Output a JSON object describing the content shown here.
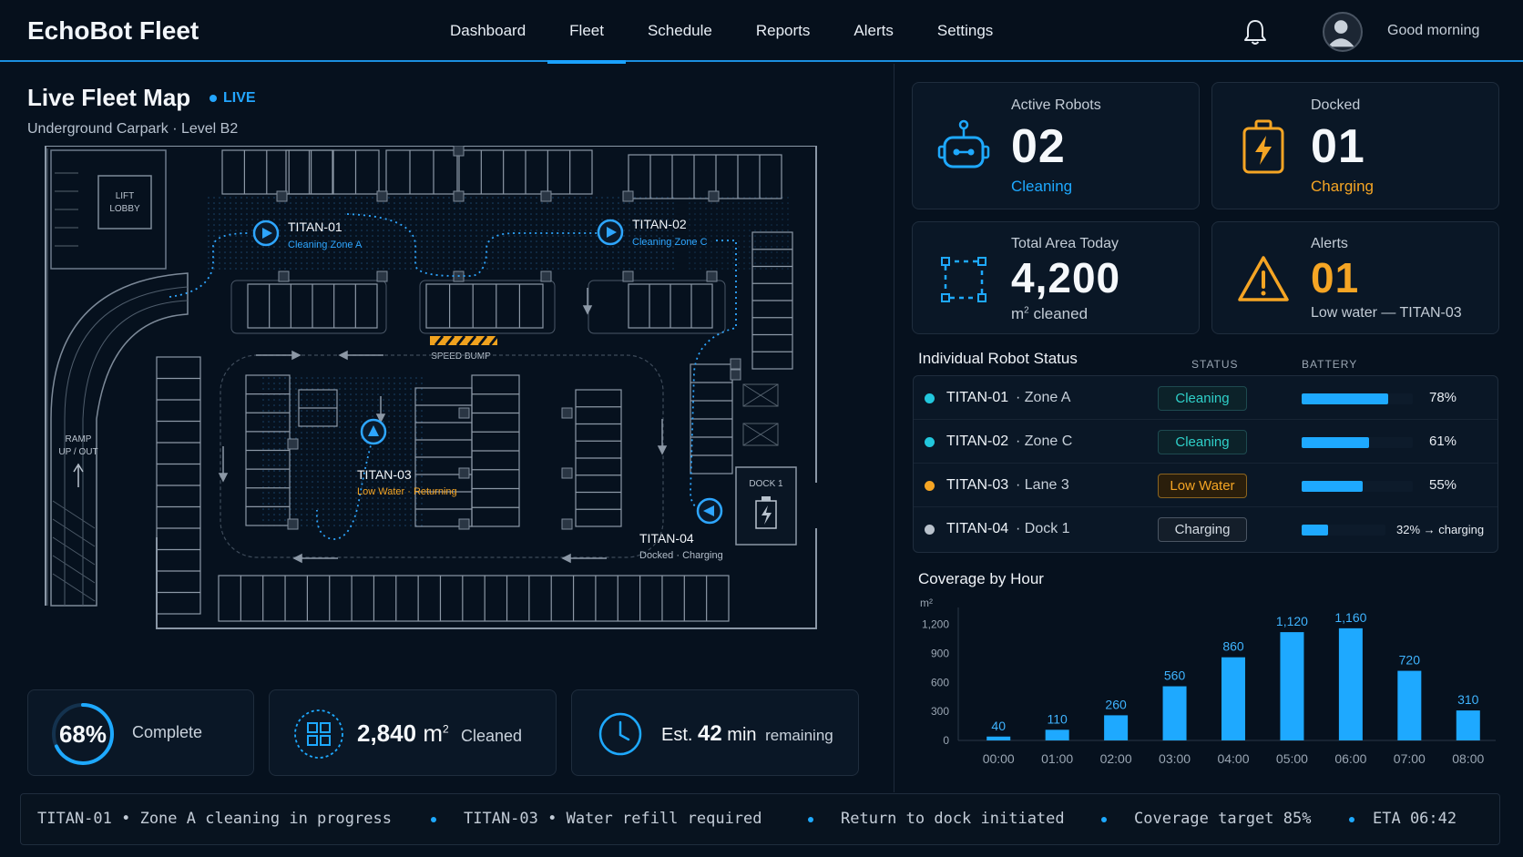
{
  "header": {
    "brand": "EchoBot Fleet",
    "nav": [
      "Dashboard",
      "Fleet",
      "Schedule",
      "Reports",
      "Alerts",
      "Settings"
    ],
    "active_nav": "Fleet",
    "greeting": "Good morning"
  },
  "map": {
    "title": "Live Fleet Map",
    "live_label": "LIVE",
    "location": "Underground Carpark",
    "level": "Level B2",
    "labels": {
      "lift_lobby": [
        "LIFT",
        "LOBBY"
      ],
      "ramp": [
        "RAMP",
        "UP / OUT"
      ],
      "speed_bump": "SPEED BUMP",
      "dock": "DOCK 1"
    },
    "robots": [
      {
        "name": "TITAN-01",
        "status": "Cleaning Zone A",
        "color": "#2ea6ff"
      },
      {
        "name": "TITAN-02",
        "status": "Cleaning Zone C",
        "color": "#2ea6ff"
      },
      {
        "name": "TITAN-03",
        "status": "Low Water · Returning",
        "color": "#f5a524"
      },
      {
        "name": "TITAN-04",
        "status": "Docked · Charging",
        "color": "#b4bfcb"
      }
    ]
  },
  "progress": {
    "percent_text": "68%",
    "percent_value": 0.68,
    "complete_label": "Complete",
    "area_value": "2,840",
    "area_unit": "m",
    "area_sup": "2",
    "area_label": "Cleaned",
    "eta_prefix": "Est.",
    "eta_value": "42",
    "eta_unit": "min",
    "eta_label": "remaining"
  },
  "kpis": {
    "active": {
      "label": "Active Robots",
      "value": "02",
      "sub": "Cleaning",
      "icon": "robot-icon"
    },
    "docked": {
      "label": "Docked",
      "value": "01",
      "sub": "Charging",
      "icon": "battery-charging-icon"
    },
    "area": {
      "label": "Total Area Today",
      "value": "4,200",
      "sub_unit": "m",
      "sub_sup": "2",
      "sub": "cleaned",
      "icon": "area-select-icon"
    },
    "alerts": {
      "label": "Alerts",
      "value": "01",
      "sub": "Low water — TITAN-03",
      "icon": "warning-icon"
    }
  },
  "status_table": {
    "title": "Individual Robot Status",
    "col_status": "STATUS",
    "col_battery": "BATTERY",
    "rows": [
      {
        "name": "TITAN-01",
        "zone": "· Zone A",
        "status": "Cleaning",
        "battery": 0.78,
        "battery_text": "78%",
        "dot": "#22c7dd",
        "kind": "clean"
      },
      {
        "name": "TITAN-02",
        "zone": "· Zone C",
        "status": "Cleaning",
        "battery": 0.61,
        "battery_text": "61%",
        "dot": "#22c7dd",
        "kind": "clean"
      },
      {
        "name": "TITAN-03",
        "zone": "· Lane 3",
        "status": "Low Water",
        "battery": 0.55,
        "battery_text": "55%",
        "dot": "#f5a524",
        "kind": "warn"
      },
      {
        "name": "TITAN-04",
        "zone": "· Dock 1",
        "status": "Charging",
        "battery": 0.32,
        "battery_text": "32% → charging",
        "dot": "#b9c2cc",
        "kind": "charge"
      }
    ]
  },
  "chart_title": "Coverage by Hour",
  "chart_data": {
    "type": "bar",
    "categories": [
      "00:00",
      "01:00",
      "02:00",
      "03:00",
      "04:00",
      "05:00",
      "06:00",
      "07:00",
      "08:00"
    ],
    "values": [
      40,
      110,
      260,
      560,
      860,
      1120,
      1160,
      720,
      310
    ],
    "title": "Coverage by Hour",
    "ylabel": "m²",
    "yticks": [
      0,
      300,
      600,
      900,
      1200
    ],
    "ylim": [
      0,
      1300
    ],
    "color": "#1ea9ff"
  },
  "ticker": [
    "TITAN-01 • Zone A cleaning in progress",
    "TITAN-03 • Water refill required",
    "Return to dock initiated",
    "Coverage target 85%",
    "ETA 06:42"
  ]
}
